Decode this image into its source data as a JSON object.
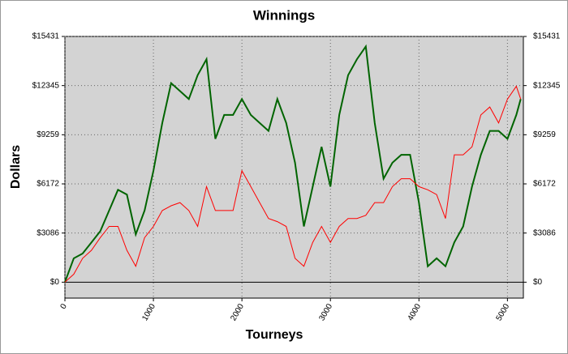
{
  "chart_data": {
    "type": "line",
    "title": "Winnings",
    "x_label": "Tourneys",
    "y_label": "Dollars",
    "x": [
      0,
      100,
      200,
      300,
      400,
      500,
      600,
      700,
      800,
      900,
      1000,
      1100,
      1200,
      1300,
      1400,
      1500,
      1600,
      1700,
      1800,
      1900,
      2000,
      2100,
      2200,
      2300,
      2400,
      2500,
      2600,
      2700,
      2800,
      2900,
      3000,
      3100,
      3200,
      3300,
      3400,
      3500,
      3600,
      3700,
      3800,
      3900,
      4000,
      4100,
      4200,
      4300,
      4400,
      4500,
      4600,
      4700,
      4800,
      4900,
      5000,
      5100,
      5150
    ],
    "series": [
      {
        "color": "#006400",
        "values": [
          0,
          1500,
          1800,
          2500,
          3200,
          4500,
          5800,
          5500,
          3000,
          4500,
          7000,
          10000,
          12500,
          12000,
          11500,
          13000,
          14000,
          9000,
          10500,
          10500,
          11500,
          10500,
          10000,
          9500,
          11500,
          10000,
          7500,
          3500,
          6000,
          8500,
          6000,
          10500,
          13000,
          14000,
          14800,
          10000,
          6500,
          7500,
          8000,
          8000,
          5000,
          1000,
          1500,
          1000,
          2500,
          3500,
          6000,
          8000,
          9500,
          9500,
          9000,
          10500,
          11500
        ]
      },
      {
        "color": "#ff0000",
        "values": [
          0,
          500,
          1500,
          2000,
          2800,
          3500,
          3500,
          2000,
          1000,
          2800,
          3500,
          4500,
          4800,
          5000,
          4500,
          3500,
          6000,
          4500,
          4500,
          4500,
          7000,
          6000,
          5000,
          4000,
          3800,
          3500,
          1500,
          1000,
          2500,
          3500,
          2500,
          3500,
          4000,
          4000,
          4200,
          5000,
          5000,
          6000,
          6500,
          6500,
          6000,
          5800,
          5500,
          4000,
          8000,
          8000,
          8500,
          10500,
          11000,
          10000,
          11500,
          12300,
          11500
        ]
      }
    ],
    "xlim": [
      0,
      5180
    ],
    "xticks": [
      0,
      1000,
      2000,
      3000,
      4000,
      5000
    ],
    "ylim": [
      -1000,
      15431
    ],
    "yticks": [
      {
        "value": 0,
        "label": "$0"
      },
      {
        "value": 3086,
        "label": "$3086"
      },
      {
        "value": 6172,
        "label": "$6172"
      },
      {
        "value": 9259,
        "label": "$9259"
      },
      {
        "value": 12345,
        "label": "$12345"
      },
      {
        "value": 15431,
        "label": "$15431"
      }
    ],
    "y2lim": [
      -1000,
      15431
    ],
    "y2ticks": [
      {
        "value": 0,
        "label": "$0"
      },
      {
        "value": 3086,
        "label": "$3086"
      },
      {
        "value": 6172,
        "label": "$6172"
      },
      {
        "value": 9259,
        "label": "$9259"
      },
      {
        "value": 12345,
        "label": "$12345"
      },
      {
        "value": 15431,
        "label": "$15431"
      }
    ],
    "grid": true
  }
}
